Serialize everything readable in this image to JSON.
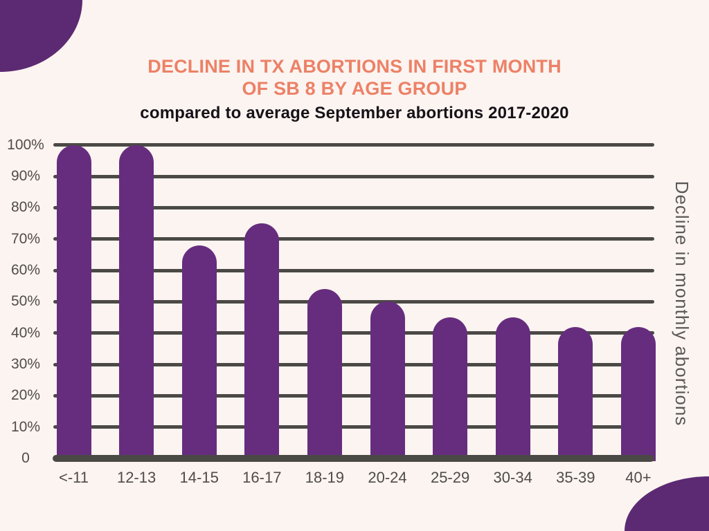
{
  "page": {
    "background": "#FCF4F0",
    "corner_color": "#5C2A72",
    "title_color": "#EC8167",
    "subtitle_color": "#161218",
    "grid_color": "#4B4946",
    "bar_color": "#662D7E",
    "tick_label_color": "#504C49"
  },
  "header": {
    "title_line1": "DECLINE IN TX ABORTIONS IN FIRST MONTH",
    "title_line2": "OF SB 8 BY AGE GROUP",
    "subtitle": "compared to average September abortions 2017-2020"
  },
  "chart_data": {
    "type": "bar",
    "title": "DECLINE IN TX ABORTIONS IN FIRST MONTH OF SB 8 BY AGE GROUP",
    "subtitle": "compared to average September abortions 2017-2020",
    "categories": [
      "<-11",
      "12-13",
      "14-15",
      "16-17",
      "18-19",
      "20-24",
      "25-29",
      "30-34",
      "35-39",
      "40+"
    ],
    "values": [
      100,
      100,
      68,
      75,
      54,
      50,
      45,
      45,
      42,
      42
    ],
    "value_unit": "percent",
    "xlabel": "",
    "ylabel": "Decline in monthly abortions",
    "ylim": [
      0,
      100
    ],
    "yticks": [
      0,
      10,
      20,
      30,
      40,
      50,
      60,
      70,
      80,
      90,
      100
    ],
    "ytick_labels": [
      "0",
      "10%",
      "20%",
      "30%",
      "40%",
      "50%",
      "60%",
      "70%",
      "80%",
      "90%",
      "100%"
    ],
    "grid": "horizontal",
    "legend": "none",
    "bar_color": "#662D7E"
  }
}
